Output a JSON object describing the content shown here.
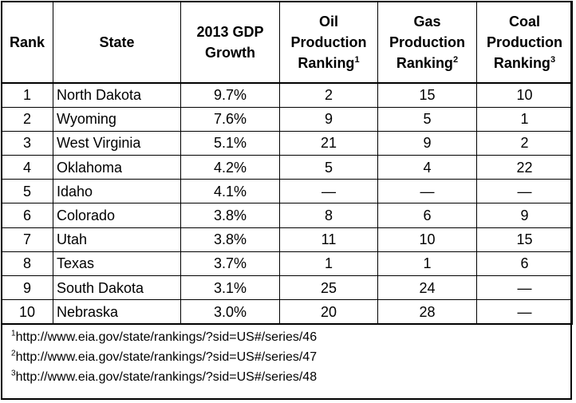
{
  "header": {
    "rank": "Rank",
    "state": "State",
    "gdp": [
      "2013 GDP",
      "Growth"
    ],
    "oil": [
      "Oil",
      "Production",
      "Ranking"
    ],
    "gas": [
      "Gas",
      "Production",
      "Ranking"
    ],
    "coal": [
      "Coal",
      "Production",
      "Ranking"
    ],
    "oil_sup": "1",
    "gas_sup": "2",
    "coal_sup": "3"
  },
  "rows": [
    {
      "rank": "1",
      "state": "North Dakota",
      "gdp": "9.7%",
      "oil": "2",
      "gas": "15",
      "coal": "10"
    },
    {
      "rank": "2",
      "state": "Wyoming",
      "gdp": "7.6%",
      "oil": "9",
      "gas": "5",
      "coal": "1"
    },
    {
      "rank": "3",
      "state": "West Virginia",
      "gdp": "5.1%",
      "oil": "21",
      "gas": "9",
      "coal": "2"
    },
    {
      "rank": "4",
      "state": "Oklahoma",
      "gdp": "4.2%",
      "oil": "5",
      "gas": "4",
      "coal": "22"
    },
    {
      "rank": "5",
      "state": "Idaho",
      "gdp": "4.1%",
      "oil": "—",
      "gas": "—",
      "coal": "—"
    },
    {
      "rank": "6",
      "state": "Colorado",
      "gdp": "3.8%",
      "oil": "8",
      "gas": "6",
      "coal": "9"
    },
    {
      "rank": "7",
      "state": "Utah",
      "gdp": "3.8%",
      "oil": "11",
      "gas": "10",
      "coal": "15"
    },
    {
      "rank": "8",
      "state": "Texas",
      "gdp": "3.7%",
      "oil": "1",
      "gas": "1",
      "coal": "6"
    },
    {
      "rank": "9",
      "state": "South Dakota",
      "gdp": "3.1%",
      "oil": "25",
      "gas": "24",
      "coal": "—"
    },
    {
      "rank": "10",
      "state": "Nebraska",
      "gdp": "3.0%",
      "oil": "20",
      "gas": "28",
      "coal": "—"
    }
  ],
  "footnotes": [
    {
      "mark": "1",
      "text": "http://www.eia.gov/state/rankings/?sid=US#/series/46"
    },
    {
      "mark": "2",
      "text": "http://www.eia.gov/state/rankings/?sid=US#/series/47"
    },
    {
      "mark": "3",
      "text": "http://www.eia.gov/state/rankings/?sid=US#/series/48"
    }
  ]
}
